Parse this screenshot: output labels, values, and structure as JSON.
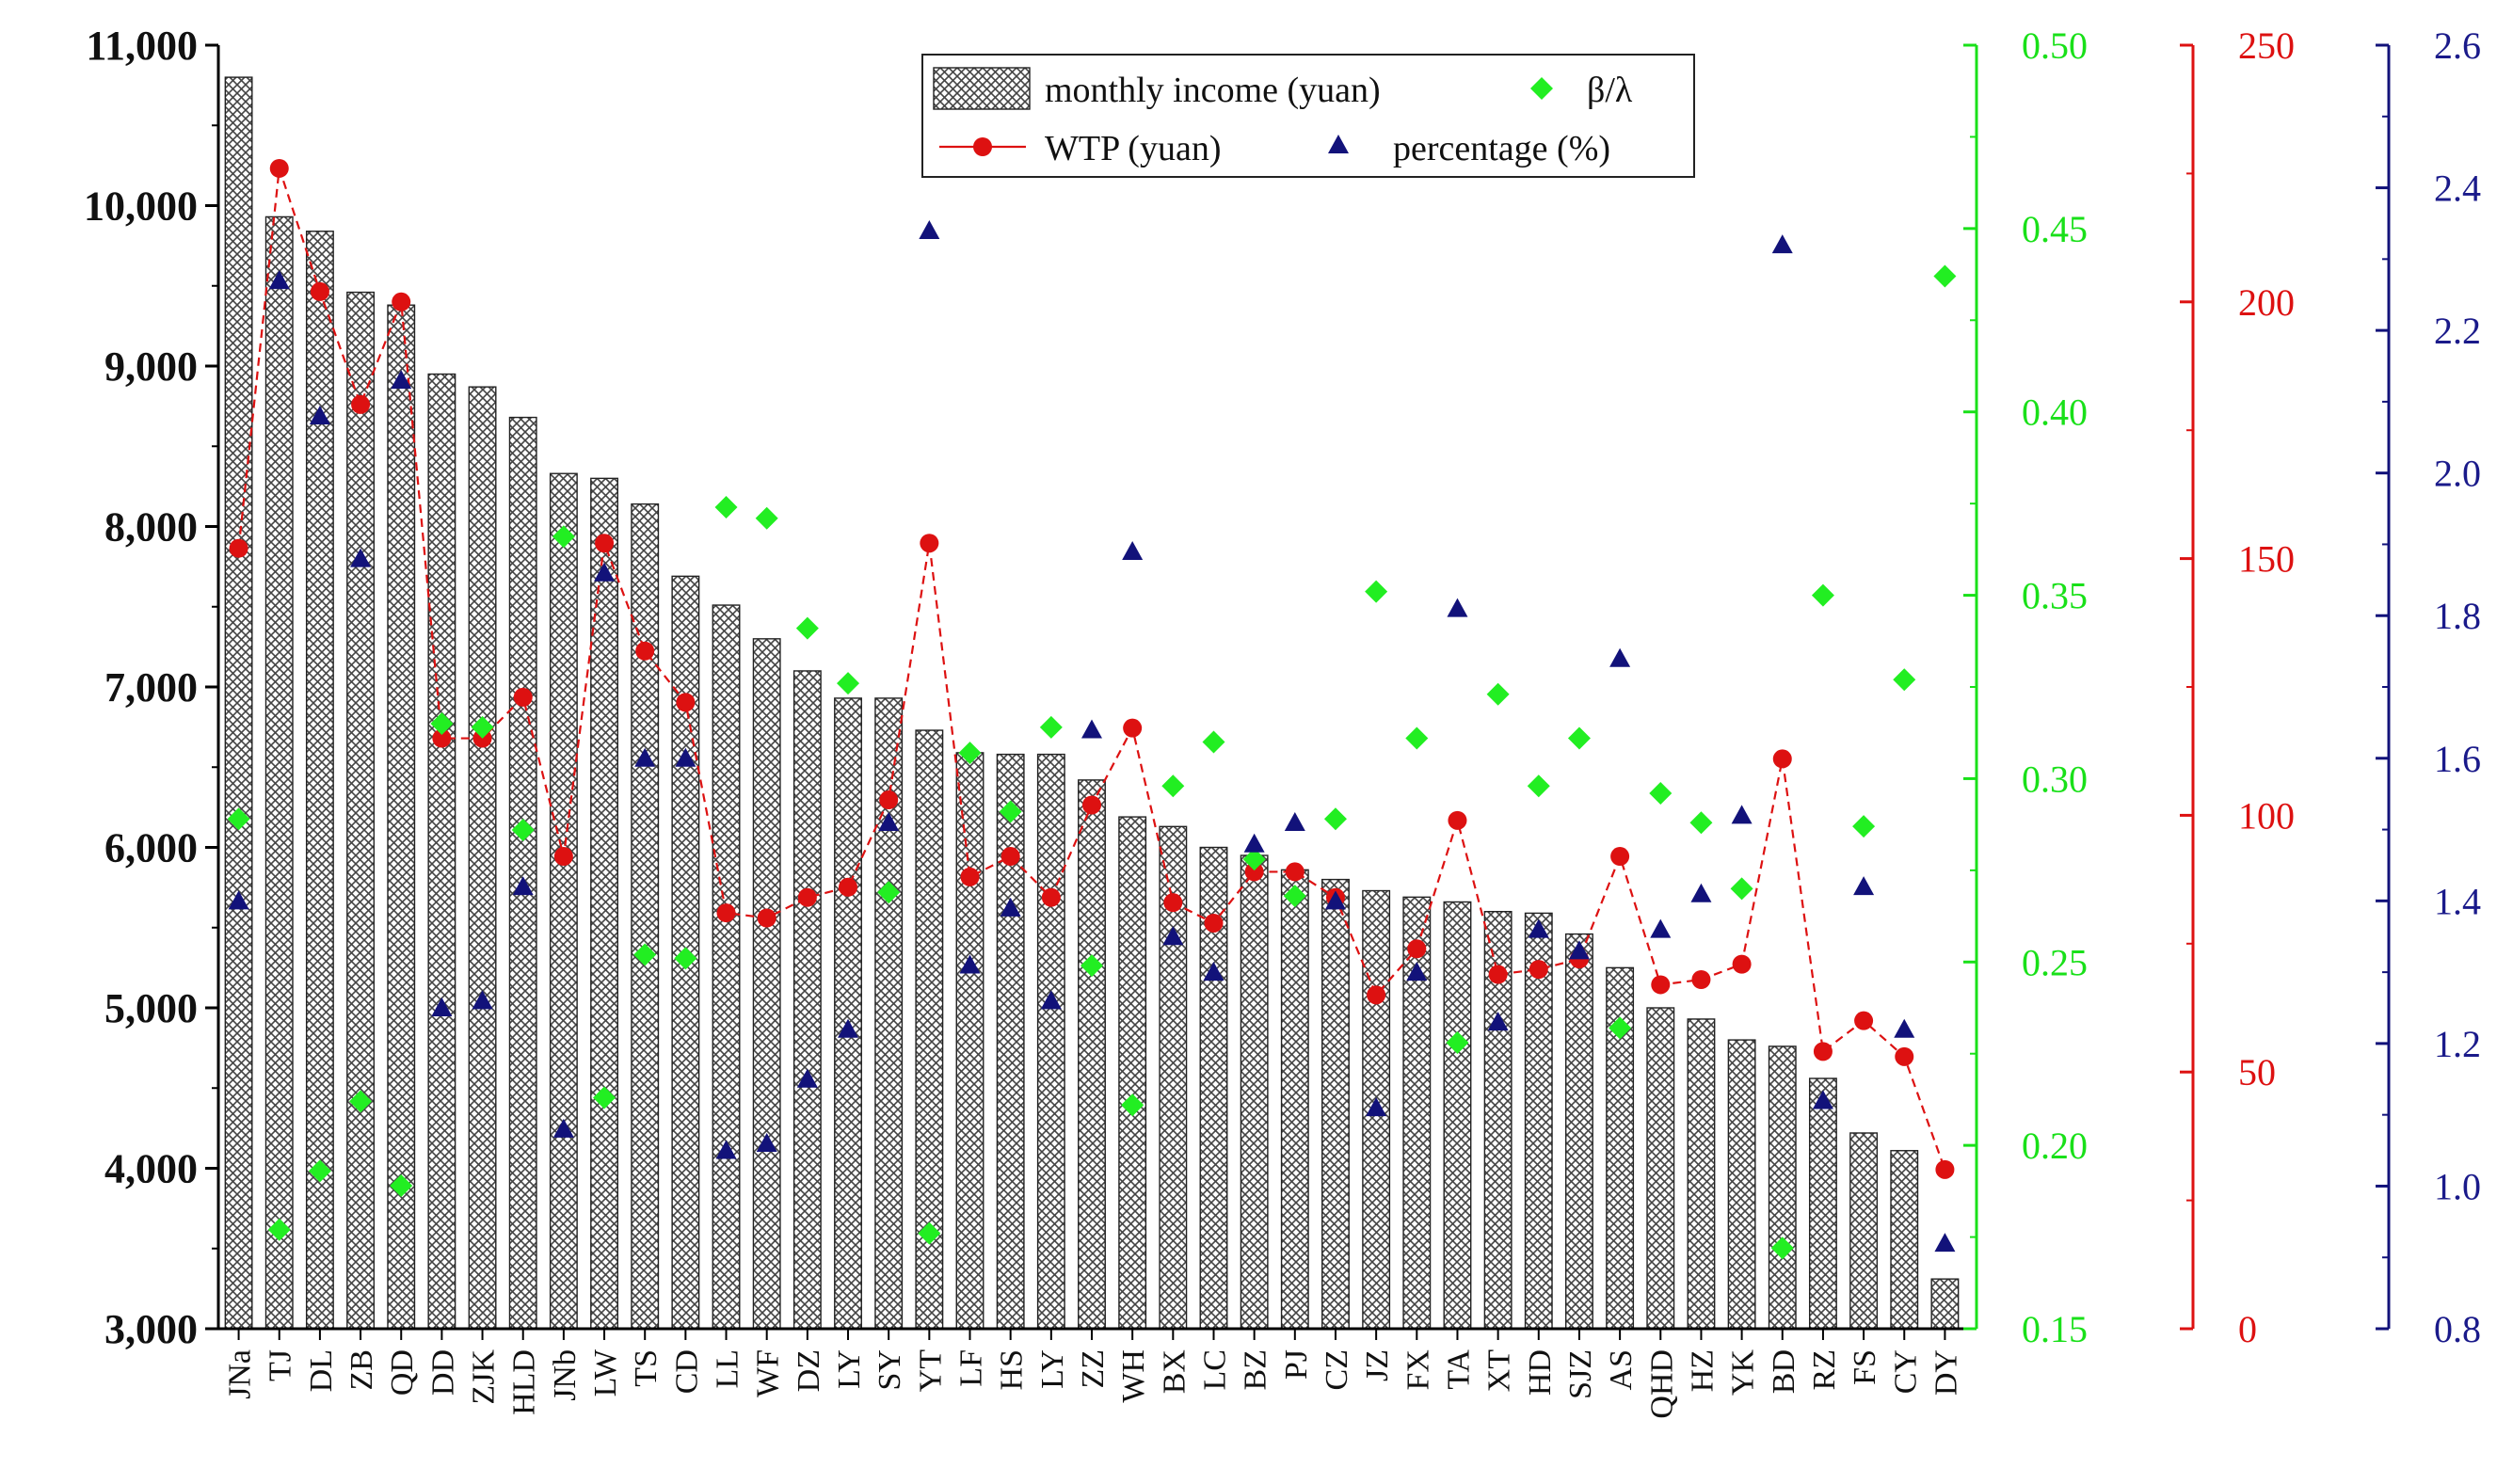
{
  "chart_data": {
    "type": "bar",
    "categories": [
      "JNa",
      "TJ",
      "DL",
      "ZB",
      "QD",
      "DD",
      "ZJK",
      "HLD",
      "JNb",
      "LW",
      "TS",
      "CD",
      "LL",
      "WF",
      "DZ",
      "LY",
      "SY",
      "YT",
      "LF",
      "HS",
      "LY",
      "ZZ",
      "WH",
      "BX",
      "LC",
      "BZ",
      "PJ",
      "CZ",
      "JZ",
      "FX",
      "TA",
      "XT",
      "HD",
      "SJZ",
      "AS",
      "QHD",
      "HZ",
      "YK",
      "BD",
      "RZ",
      "FS",
      "CY",
      "DY"
    ],
    "series": [
      {
        "name": "monthly income (yuan)",
        "type": "bar",
        "axis": "left",
        "color": "#333333",
        "values": [
          10800,
          9930,
          9840,
          9460,
          9380,
          8950,
          8870,
          8680,
          8330,
          8300,
          8140,
          7690,
          7510,
          7300,
          7100,
          6930,
          6930,
          6730,
          6590,
          6580,
          6580,
          6420,
          6190,
          6130,
          6000,
          5950,
          5860,
          5800,
          5730,
          5690,
          5660,
          5600,
          5590,
          5460,
          5250,
          5000,
          4930,
          4800,
          4760,
          4560,
          4220,
          4110,
          3310
        ]
      },
      {
        "name": "β/λ",
        "type": "scatter",
        "axis": "green",
        "color": "#22ee22",
        "values": [
          0.289,
          0.177,
          0.193,
          0.212,
          0.189,
          0.315,
          0.314,
          0.286,
          0.366,
          0.213,
          0.252,
          0.251,
          0.374,
          0.371,
          0.341,
          0.326,
          0.269,
          0.176,
          0.307,
          0.291,
          0.314,
          0.249,
          0.211,
          0.298,
          0.31,
          0.278,
          0.268,
          0.289,
          0.351,
          0.311,
          0.228,
          0.323,
          0.298,
          0.311,
          0.232,
          0.296,
          0.288,
          0.27,
          0.172,
          0.35,
          0.287,
          0.327,
          0.437
        ]
      },
      {
        "name": "WTP (yuan)",
        "type": "line",
        "axis": "red",
        "color": "#dd1111",
        "values": [
          152,
          226,
          202,
          180,
          200,
          115,
          115,
          123,
          92,
          153,
          132,
          122,
          81,
          80,
          84,
          86,
          103,
          153,
          88,
          92,
          84,
          102,
          117,
          83,
          79,
          89,
          89,
          84,
          65,
          74,
          99,
          69,
          70,
          72,
          92,
          67,
          68,
          71,
          111,
          54,
          60,
          53,
          31
        ]
      },
      {
        "name": "percentage (%)",
        "type": "scatter",
        "axis": "blue",
        "color": "#12127a",
        "values": [
          1.4,
          2.27,
          2.08,
          1.88,
          2.13,
          1.25,
          1.26,
          1.42,
          1.08,
          1.86,
          1.6,
          1.6,
          1.05,
          1.06,
          1.15,
          1.22,
          1.51,
          2.34,
          1.31,
          1.39,
          1.26,
          1.64,
          1.89,
          1.35,
          1.3,
          1.48,
          1.51,
          1.4,
          1.11,
          1.3,
          1.81,
          1.23,
          1.36,
          1.33,
          1.74,
          1.36,
          1.41,
          1.52,
          2.32,
          1.12,
          1.42,
          1.22,
          0.92
        ]
      }
    ],
    "axes": {
      "left": {
        "ylim": [
          3000,
          11000
        ],
        "ticks": [
          "3,000",
          "4,000",
          "5,000",
          "6,000",
          "7,000",
          "8,000",
          "9,000",
          "10,000",
          "11,000"
        ],
        "color": "#000000"
      },
      "green": {
        "ylim": [
          0.15,
          0.5
        ],
        "ticks": [
          "0.15",
          "0.20",
          "0.25",
          "0.30",
          "0.35",
          "0.40",
          "0.45",
          "0.50"
        ],
        "color": "#19e019"
      },
      "red": {
        "ylim": [
          0,
          250
        ],
        "ticks": [
          "0",
          "50",
          "100",
          "150",
          "200",
          "250"
        ],
        "color": "#dd1111"
      },
      "blue": {
        "ylim": [
          0.8,
          2.6
        ],
        "ticks": [
          "0.8",
          "1.0",
          "1.2",
          "1.4",
          "1.6",
          "1.8",
          "2.0",
          "2.2",
          "2.4",
          "2.6"
        ],
        "color": "#12127a"
      }
    },
    "legend": {
      "position": "top-center",
      "items": [
        "monthly income (yuan)",
        "β/λ",
        "WTP (yuan)",
        "percentage (%)"
      ]
    },
    "title": "",
    "xlabel": "",
    "ylabel": ""
  }
}
